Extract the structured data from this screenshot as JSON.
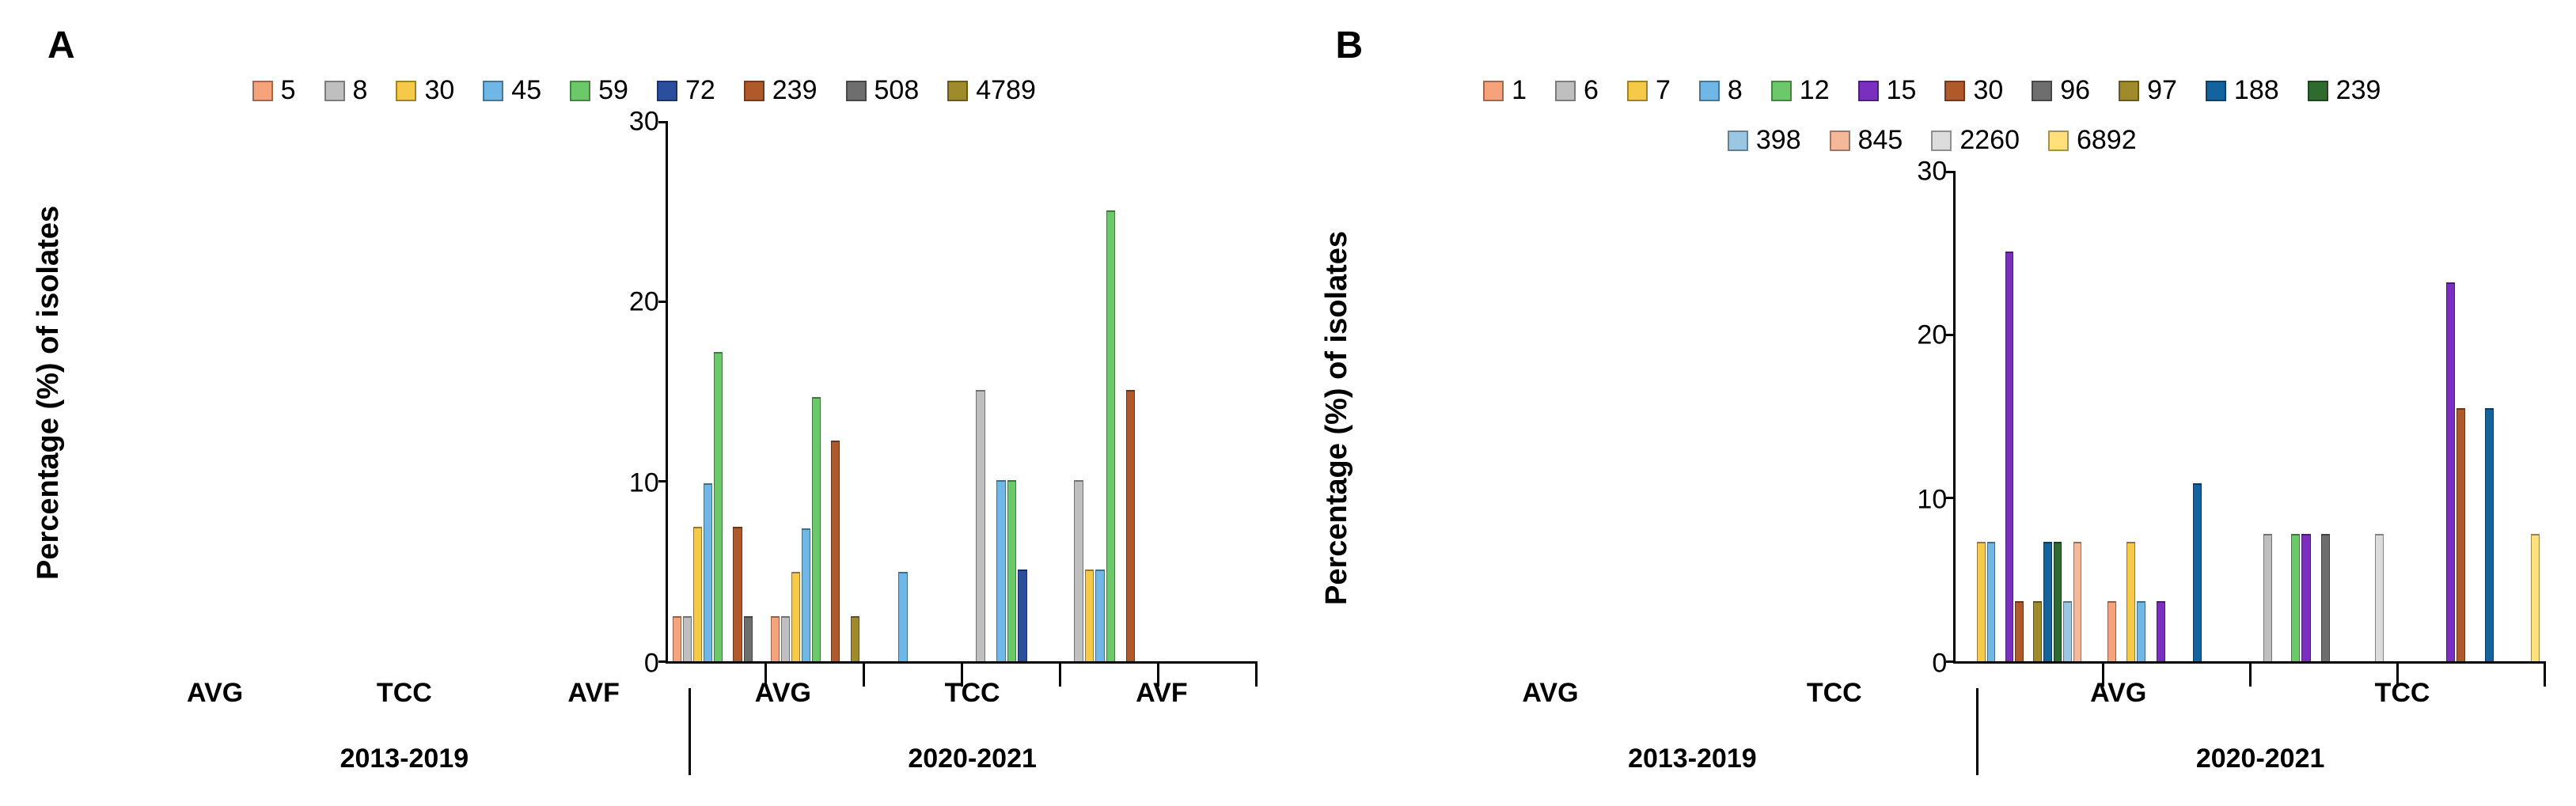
{
  "panels": [
    {
      "id": "A",
      "title": "A",
      "ylabel": "Percentage (%) of isolates",
      "ylim": [
        0,
        30
      ],
      "ytick_step": 10,
      "background_color": "#ffffff",
      "axis_color": "#000000",
      "bar_border_color": "rgba(0,0,0,0.4)",
      "label_fontsize_pt": 26,
      "tick_fontsize_pt": 24,
      "legend_fontsize_pt": 24,
      "series": [
        {
          "label": "5",
          "color": "#f6a27b"
        },
        {
          "label": "8",
          "color": "#bfbfbf"
        },
        {
          "label": "30",
          "color": "#f7c948"
        },
        {
          "label": "45",
          "color": "#6fb7e6"
        },
        {
          "label": "59",
          "color": "#6cc96a"
        },
        {
          "label": "72",
          "color": "#2a4f9e"
        },
        {
          "label": "239",
          "color": "#b05a2b"
        },
        {
          "label": "508",
          "color": "#6e6e6e"
        },
        {
          "label": "4789",
          "color": "#a08b2a"
        }
      ],
      "periods": [
        {
          "label": "2013-2019",
          "groups": [
            "AVG",
            "TCC",
            "AVF"
          ]
        },
        {
          "label": "2020-2021",
          "groups": [
            "AVG",
            "TCC",
            "AVF"
          ]
        }
      ],
      "data": {
        "2013-2019": {
          "AVG": {
            "5": 2.4,
            "8": 2.4,
            "30": 7.4,
            "45": 9.8,
            "59": 17.1,
            "72": 0,
            "239": 7.4,
            "508": 2.4,
            "4789": 0
          },
          "TCC": {
            "5": 2.4,
            "8": 2.4,
            "30": 4.9,
            "45": 7.3,
            "59": 14.6,
            "72": 0,
            "239": 12.2,
            "508": 0,
            "4789": 2.4
          },
          "AVF": {
            "5": 0,
            "8": 0,
            "30": 0,
            "45": 4.9,
            "59": 0,
            "72": 0,
            "239": 0,
            "508": 0,
            "4789": 0
          }
        },
        "2020-2021": {
          "AVG": {
            "5": 0,
            "8": 15.0,
            "30": 0,
            "45": 10.0,
            "59": 10.0,
            "72": 5.0,
            "239": 0,
            "508": 0,
            "4789": 0
          },
          "TCC": {
            "5": 0,
            "8": 10.0,
            "30": 5.0,
            "45": 5.0,
            "59": 25.0,
            "72": 0,
            "239": 15.0,
            "508": 0,
            "4789": 0
          },
          "AVF": {
            "5": 0,
            "8": 0,
            "30": 0,
            "45": 0,
            "59": 0,
            "72": 0,
            "239": 0,
            "508": 0,
            "4789": 0
          }
        }
      }
    },
    {
      "id": "B",
      "title": "B",
      "ylabel": "Percentage (%) of isolates",
      "ylim": [
        0,
        30
      ],
      "ytick_step": 10,
      "background_color": "#ffffff",
      "axis_color": "#000000",
      "bar_border_color": "rgba(0,0,0,0.4)",
      "label_fontsize_pt": 26,
      "tick_fontsize_pt": 24,
      "legend_fontsize_pt": 24,
      "series": [
        {
          "label": "1",
          "color": "#f6a27b"
        },
        {
          "label": "6",
          "color": "#bfbfbf"
        },
        {
          "label": "7",
          "color": "#f7c948"
        },
        {
          "label": "8",
          "color": "#6fb7e6"
        },
        {
          "label": "12",
          "color": "#6cc96a"
        },
        {
          "label": "15",
          "color": "#7b2fbf"
        },
        {
          "label": "30",
          "color": "#b05a2b"
        },
        {
          "label": "96",
          "color": "#6e6e6e"
        },
        {
          "label": "97",
          "color": "#a08b2a"
        },
        {
          "label": "188",
          "color": "#12639e"
        },
        {
          "label": "239",
          "color": "#2f6b2f"
        },
        {
          "label": "398",
          "color": "#9bc7e4"
        },
        {
          "label": "845",
          "color": "#f5b99a"
        },
        {
          "label": "2260",
          "color": "#dcdcdc"
        },
        {
          "label": "6892",
          "color": "#ffe07a"
        }
      ],
      "periods": [
        {
          "label": "2013-2019",
          "groups": [
            "AVG",
            "TCC"
          ]
        },
        {
          "label": "2020-2021",
          "groups": [
            "AVG",
            "TCC"
          ]
        }
      ],
      "data": {
        "2013-2019": {
          "AVG": {
            "1": 0,
            "6": 0,
            "7": 7.2,
            "8": 7.2,
            "12": 0,
            "15": 25.0,
            "30": 3.6,
            "96": 0,
            "97": 3.6,
            "188": 7.2,
            "239": 7.2,
            "398": 3.6,
            "845": 7.2,
            "2260": 0,
            "6892": 0
          },
          "TCC": {
            "1": 3.6,
            "6": 0,
            "7": 7.2,
            "8": 3.6,
            "12": 0,
            "15": 3.6,
            "30": 0,
            "96": 0,
            "97": 0,
            "188": 10.8,
            "239": 0,
            "398": 0,
            "845": 0,
            "2260": 0,
            "6892": 0
          }
        },
        "2020-2021": {
          "AVG": {
            "1": 0,
            "6": 7.7,
            "7": 0,
            "8": 0,
            "12": 7.7,
            "15": 7.7,
            "30": 0,
            "96": 7.7,
            "97": 0,
            "188": 0,
            "239": 0,
            "398": 0,
            "845": 0,
            "2260": 7.7,
            "6892": 0
          },
          "TCC": {
            "1": 0,
            "6": 0,
            "7": 0,
            "8": 0,
            "12": 0,
            "15": 23.1,
            "30": 15.4,
            "96": 0,
            "97": 0,
            "188": 15.4,
            "239": 0,
            "398": 0,
            "845": 0,
            "2260": 0,
            "6892": 7.7
          }
        }
      }
    }
  ]
}
